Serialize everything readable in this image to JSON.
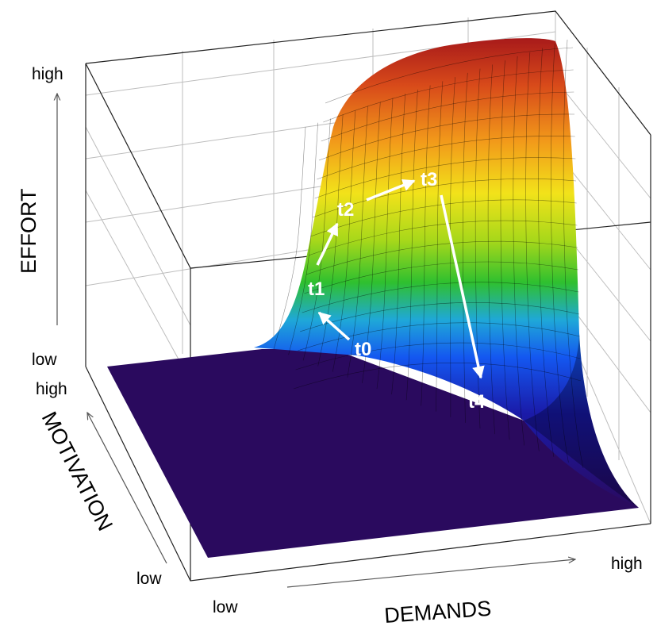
{
  "chart_data": {
    "type": "surface3d",
    "title": "",
    "x_axis": {
      "label": "DEMANDS",
      "low_label": "low",
      "high_label": "high",
      "range": [
        0,
        1
      ]
    },
    "y_axis": {
      "label": "MOTIVATION",
      "low_label": "low",
      "high_label": "high",
      "range": [
        0,
        1
      ]
    },
    "z_axis": {
      "label": "EFFORT",
      "low_label": "low",
      "high_label": "high",
      "range": [
        0,
        1
      ]
    },
    "surface": {
      "description": "effort rises with demands only up to the level justified by motivation",
      "colormap": [
        "#2a0a5e",
        "#1a1aa8",
        "#1457f0",
        "#1fa8d8",
        "#2fc02f",
        "#a8d81a",
        "#f2e21a",
        "#f29a1a",
        "#d84a1a",
        "#a81a1a"
      ]
    },
    "trajectory": [
      {
        "label": "t0",
        "demands": 0.22,
        "motivation": 0.7,
        "effort": 0.18
      },
      {
        "label": "t1",
        "demands": 0.16,
        "motivation": 0.82,
        "effort": 0.33
      },
      {
        "label": "t2",
        "demands": 0.22,
        "motivation": 0.93,
        "effort": 0.55
      },
      {
        "label": "t3",
        "demands": 0.42,
        "motivation": 0.95,
        "effort": 0.63
      },
      {
        "label": "t4",
        "demands": 0.52,
        "motivation": 0.8,
        "effort": 0.1
      }
    ],
    "grid": true
  }
}
